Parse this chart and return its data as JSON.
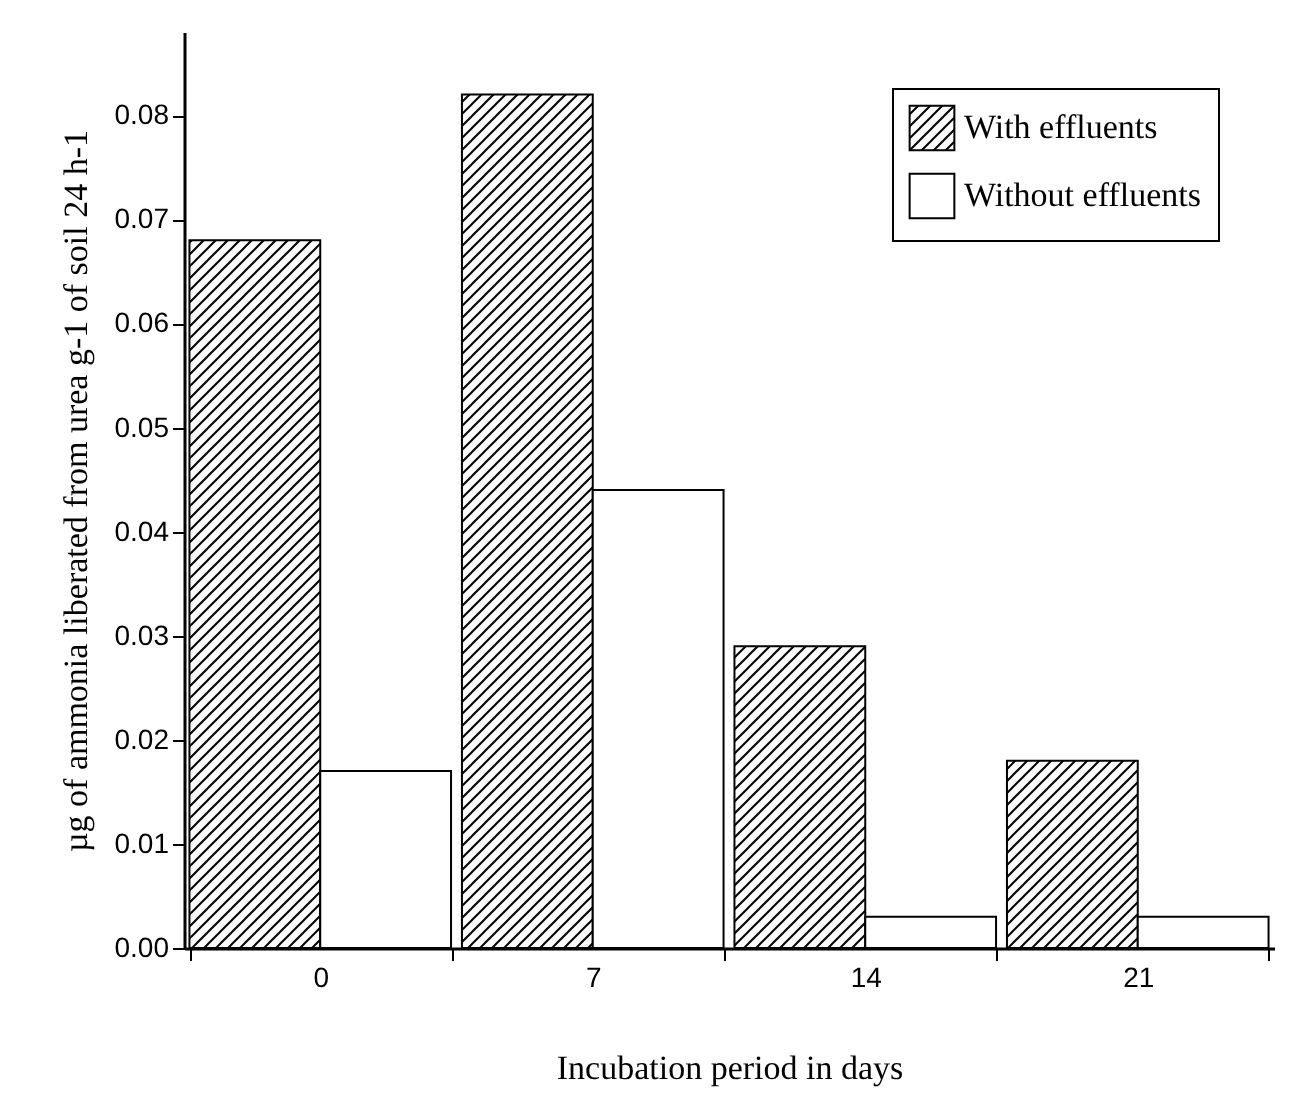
{
  "chart_data": {
    "type": "bar",
    "xlabel": "Incubation period in days",
    "ylabel": "µg of ammonia liberated from urea g-1 of soil 24 h-1",
    "categories": [
      "0",
      "7",
      "14",
      "21"
    ],
    "series": [
      {
        "name": "With effluents",
        "color": "#000000",
        "values": [
          0.068,
          0.082,
          0.029,
          0.018
        ]
      },
      {
        "name": "Without effluents",
        "color": "#ffffff",
        "values": [
          0.017,
          0.044,
          0.003,
          0.003
        ]
      }
    ],
    "ylim": [
      0,
      0.088
    ],
    "yticks": [
      {
        "value": 0,
        "label": "0.00"
      },
      0.01,
      0.02,
      0.03,
      0.04,
      0.05,
      0.06,
      0.07,
      0.08
    ],
    "grid": false,
    "legend": "top right"
  }
}
